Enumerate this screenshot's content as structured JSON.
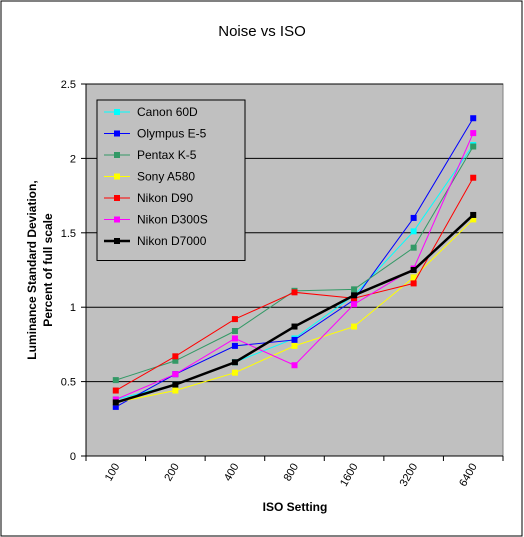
{
  "chart_data": {
    "type": "line",
    "title": "Noise vs ISO",
    "xlabel": "ISO Setting",
    "ylabel_lines": [
      "Luminance Standard Deviation,",
      "Percent of full scale"
    ],
    "categories": [
      "100",
      "200",
      "400",
      "800",
      "1600",
      "3200",
      "6400"
    ],
    "ylim": [
      0,
      2.5
    ],
    "yticks": [
      "0",
      "0.5",
      "1",
      "1.5",
      "2",
      "2.5"
    ],
    "grid": true,
    "legend_position": "top-left",
    "plot_background": "#c0c0c0",
    "series": [
      {
        "name": "Canon 60D",
        "color": "#00ffff",
        "values": [
          0.38,
          0.48,
          0.63,
          0.79,
          1.08,
          1.51,
          2.09
        ]
      },
      {
        "name": "Olympus E-5",
        "color": "#0000ff",
        "values": [
          0.33,
          0.55,
          0.74,
          0.78,
          1.05,
          1.6,
          2.27
        ]
      },
      {
        "name": "Pentax K-5",
        "color": "#339966",
        "values": [
          0.51,
          0.64,
          0.84,
          1.11,
          1.12,
          1.4,
          2.08
        ]
      },
      {
        "name": "Sony A580",
        "color": "#ffff00",
        "values": [
          0.36,
          0.44,
          0.56,
          0.74,
          0.87,
          1.2,
          1.59
        ]
      },
      {
        "name": "Nikon D90",
        "color": "#ff0000",
        "values": [
          0.44,
          0.67,
          0.92,
          1.1,
          1.06,
          1.16,
          1.87
        ]
      },
      {
        "name": "Nikon D300S",
        "color": "#ff00ff",
        "values": [
          0.38,
          0.55,
          0.79,
          0.61,
          1.02,
          1.26,
          2.17
        ]
      },
      {
        "name": "Nikon D7000",
        "color": "#000000",
        "values": [
          0.36,
          0.48,
          0.63,
          0.87,
          1.08,
          1.25,
          1.62
        ],
        "emphasis": true
      }
    ]
  }
}
